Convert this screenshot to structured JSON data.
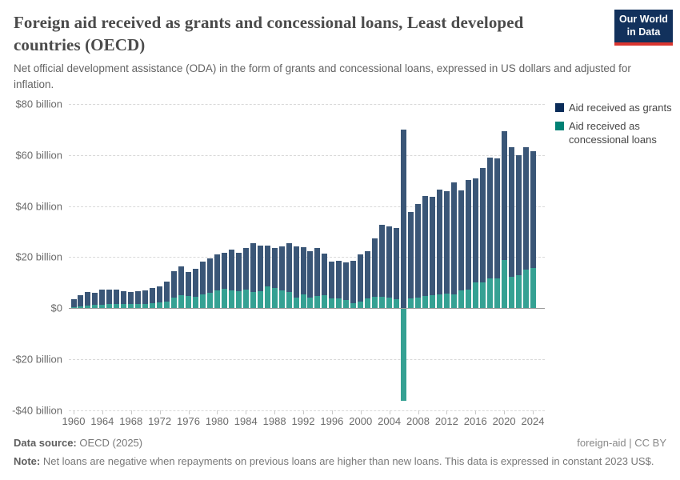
{
  "header": {
    "title": "Foreign aid received as grants and concessional loans, Least developed countries (OECD)",
    "subtitle": "Net official development assistance (ODA) in the form of grants and concessional loans, expressed in US dollars and adjusted for inflation.",
    "logo": {
      "line1": "Our World",
      "line2": "in Data"
    }
  },
  "legend": {
    "items": [
      {
        "label": "Aid received as grants",
        "color": "#0a2c59"
      },
      {
        "label": "Aid received as concessional loans",
        "color": "#008174"
      }
    ]
  },
  "footer": {
    "source_label": "Data source:",
    "source_value": " OECD (2025)",
    "license": "foreign-aid | CC BY",
    "note_label": "Note:",
    "note_value": " Net loans are negative when repayments on previous loans are higher than new loans. This data is expressed in constant 2023 US$."
  },
  "colors": {
    "grants_bar": "#3a5677",
    "loans_bar": "#35a193",
    "grants_legend": "#0a2c59",
    "loans_legend": "#008174",
    "axis_line": "#9a9a9a",
    "gridline": "#d9d9d9"
  },
  "chart_data": {
    "type": "bar",
    "stacked": true,
    "title": "Foreign aid received as grants and concessional loans, Least developed countries (OECD)",
    "ylabel": "US$ billion",
    "ylim": [
      -40,
      80
    ],
    "grid": "horizontal dashed",
    "legend_position": "top-right",
    "x": [
      1960,
      1961,
      1962,
      1963,
      1964,
      1965,
      1966,
      1967,
      1968,
      1969,
      1970,
      1971,
      1972,
      1973,
      1974,
      1975,
      1976,
      1977,
      1978,
      1979,
      1980,
      1981,
      1982,
      1983,
      1984,
      1985,
      1986,
      1987,
      1988,
      1989,
      1990,
      1991,
      1992,
      1993,
      1994,
      1995,
      1996,
      1997,
      1998,
      1999,
      2000,
      2001,
      2002,
      2003,
      2004,
      2005,
      2006,
      2007,
      2008,
      2009,
      2010,
      2011,
      2012,
      2013,
      2014,
      2015,
      2016,
      2017,
      2018,
      2019,
      2020,
      2021,
      2022,
      2023,
      2024
    ],
    "series": [
      {
        "name": "Aid received as concessional loans",
        "values": [
          0.3,
          0.6,
          0.9,
          1.3,
          1.4,
          1.5,
          1.6,
          1.5,
          1.5,
          1.6,
          1.6,
          1.9,
          2.2,
          2.6,
          4.2,
          4.9,
          4.7,
          4.5,
          5.3,
          6.0,
          7.0,
          7.5,
          6.8,
          6.6,
          7.2,
          6.3,
          6.7,
          8.4,
          7.7,
          6.9,
          6.3,
          4.2,
          5.3,
          4.2,
          4.7,
          4.9,
          3.7,
          3.7,
          3.1,
          1.8,
          2.4,
          3.7,
          4.4,
          4.5,
          4.0,
          3.5,
          -36.0,
          3.7,
          4.2,
          4.7,
          4.9,
          5.3,
          5.8,
          5.3,
          6.8,
          7.3,
          10.0,
          10.0,
          11.5,
          11.6,
          18.9,
          12.1,
          12.9,
          15.2,
          15.7
        ]
      },
      {
        "name": "Aid received as grants",
        "values": [
          3.2,
          4.3,
          5.4,
          4.8,
          5.8,
          5.6,
          5.7,
          5.2,
          4.8,
          4.9,
          5.2,
          5.9,
          6.4,
          7.6,
          10.2,
          11.5,
          9.5,
          11.0,
          12.9,
          13.6,
          14.0,
          14.1,
          16.0,
          14.9,
          16.2,
          19.0,
          17.9,
          16.0,
          15.9,
          17.2,
          19.1,
          19.9,
          18.6,
          18.2,
          18.9,
          16.3,
          14.5,
          14.9,
          14.8,
          16.7,
          18.6,
          18.6,
          22.9,
          28.0,
          28.0,
          27.8,
          70.0,
          33.9,
          36.7,
          39.2,
          38.6,
          41.2,
          39.9,
          44.1,
          39.4,
          42.8,
          40.7,
          45.0,
          47.6,
          47.2,
          50.4,
          50.9,
          47.1,
          48.0,
          45.8
        ]
      }
    ],
    "y_ticks": [
      {
        "value": 80,
        "label": "$80 billion"
      },
      {
        "value": 60,
        "label": "$60 billion"
      },
      {
        "value": 40,
        "label": "$40 billion"
      },
      {
        "value": 20,
        "label": "$20 billion"
      },
      {
        "value": 0,
        "label": "$0"
      },
      {
        "value": -20,
        "label": "-$20 billion"
      },
      {
        "value": -40,
        "label": "-$40 billion"
      }
    ],
    "x_ticks": [
      1960,
      1964,
      1968,
      1972,
      1976,
      1980,
      1984,
      1988,
      1992,
      1996,
      2000,
      2004,
      2008,
      2012,
      2016,
      2020,
      2024
    ]
  }
}
